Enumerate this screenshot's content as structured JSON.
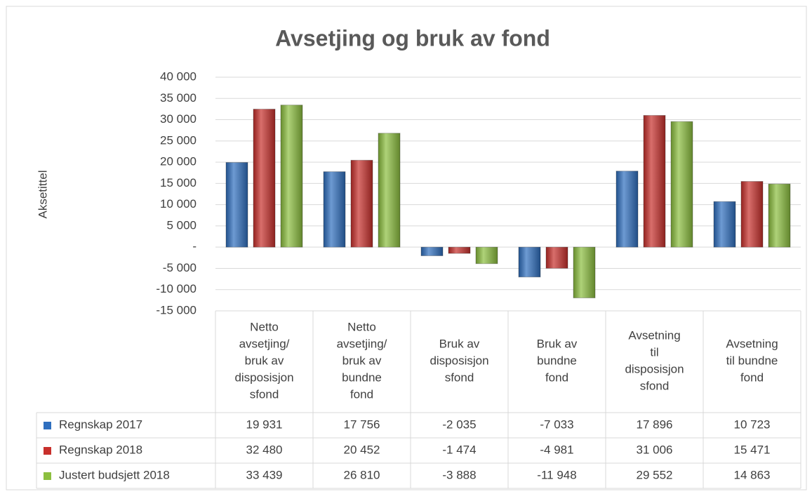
{
  "chart_data": {
    "type": "bar",
    "title": "Avsetjing og bruk av fond",
    "y_label": "Aksetittel",
    "categories": [
      "Netto\navsetjing/\nbruk av\ndisposisjon\nsfond",
      "Netto\navsetjing/\nbruk av\nbundne\nfond",
      "Bruk av\ndisposisjon\nsfond",
      "Bruk av\nbundne\nfond",
      "Avsetning\ntil\ndisposisjon\nsfond",
      "Avsetning\ntil bundne\nfond"
    ],
    "series": [
      {
        "name": "Regnskap 2017",
        "color": "#2f6fbf",
        "values": [
          19931,
          17756,
          -2035,
          -7033,
          17896,
          10723
        ],
        "value_labels": [
          "19 931",
          "17 756",
          "-2 035",
          "-7 033",
          "17 896",
          "10 723"
        ]
      },
      {
        "name": "Regnskap 2018",
        "color": "#c8302c",
        "values": [
          32480,
          20452,
          -1474,
          -4981,
          31006,
          15471
        ],
        "value_labels": [
          "32 480",
          "20 452",
          "-1 474",
          "-4 981",
          "31 006",
          "15 471"
        ]
      },
      {
        "name": "Justert budsjett 2018",
        "color": "#8cbf3f",
        "values": [
          33439,
          26810,
          -3888,
          -11948,
          29552,
          14863
        ],
        "value_labels": [
          "33 439",
          "26 810",
          "-3 888",
          "-11 948",
          "29 552",
          "14 863"
        ]
      }
    ],
    "ylim": [
      -15000,
      40000
    ],
    "yticks": [
      {
        "value": -15000,
        "label": "-15 000"
      },
      {
        "value": -10000,
        "label": "-10 000"
      },
      {
        "value": -5000,
        "label": "-5 000"
      },
      {
        "value": 0,
        "label": "-"
      },
      {
        "value": 5000,
        "label": "5 000"
      },
      {
        "value": 10000,
        "label": "10 000"
      },
      {
        "value": 15000,
        "label": "15 000"
      },
      {
        "value": 20000,
        "label": "20 000"
      },
      {
        "value": 25000,
        "label": "25 000"
      },
      {
        "value": 30000,
        "label": "30 000"
      },
      {
        "value": 35000,
        "label": "35 000"
      },
      {
        "value": 40000,
        "label": "40 000"
      }
    ],
    "grid": true
  }
}
